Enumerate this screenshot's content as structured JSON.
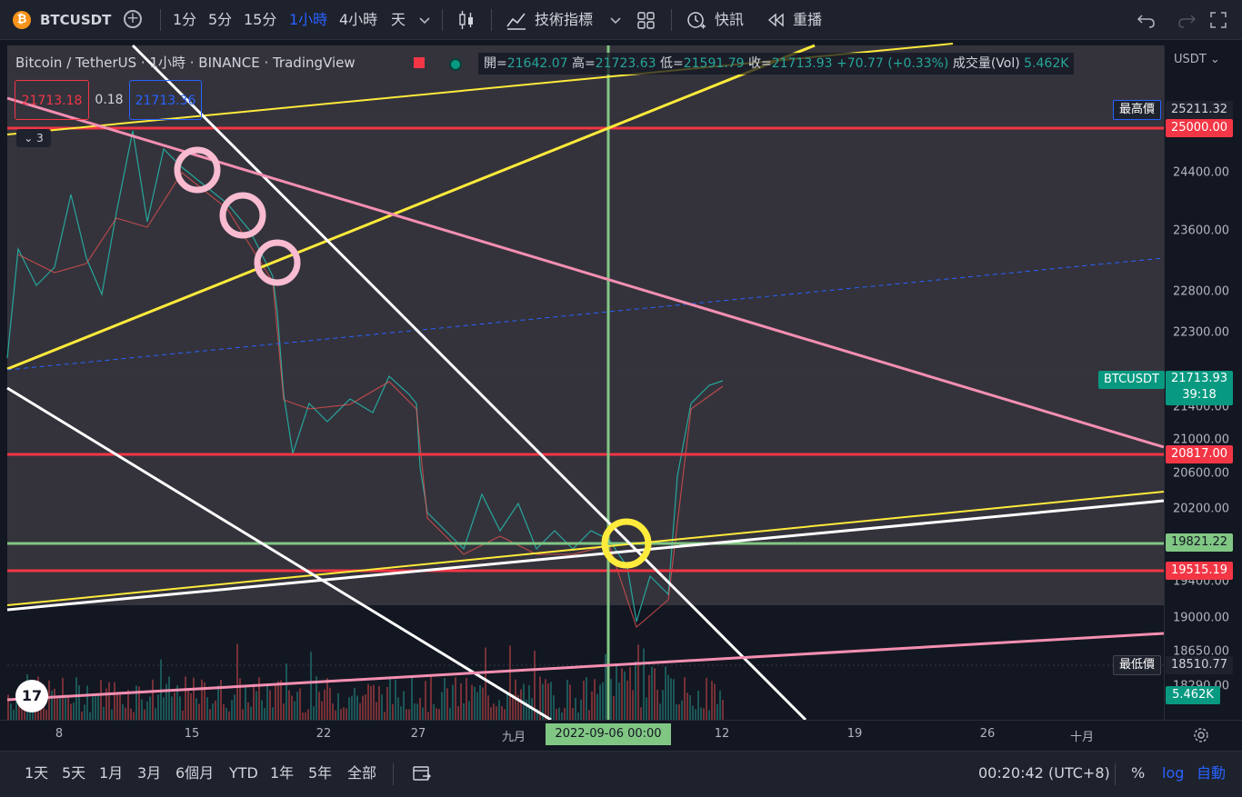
{
  "toolbar": {
    "symbol": "BTCUSDT",
    "btc_glyph": "₿",
    "add_glyph": "+",
    "intervals": [
      "1分",
      "5分",
      "15分",
      "1小時",
      "4小時",
      "天"
    ],
    "active_interval": "1小時",
    "indicators_label": "技術指標",
    "alert_label": "快訊",
    "replay_label": "重播",
    "icons": [
      "bitcoin-icon",
      "add-compare-icon",
      "chevron-down-icon",
      "candles-icon",
      "indicators-icon",
      "layout-grid-icon",
      "alert-clock-icon",
      "replay-icon",
      "undo-icon",
      "redo-icon",
      "fullscreen-icon"
    ]
  },
  "legend": {
    "title": "Bitcoin / TetherUS · 1小時 · BINANCE · TradingView",
    "open_label": "開",
    "open": "21642.07",
    "high_label": "高",
    "high": "21723.63",
    "low_label": "低",
    "low": "21591.79",
    "close_label": "收",
    "close": "21713.93",
    "change": "+70.77 (+0.33%)",
    "volume_label": "成交量(Vol)",
    "volume": "5.462K",
    "bid": "21713.18",
    "spread": "0.18",
    "ask": "21713.36",
    "collapsed_count": "3"
  },
  "price_axis": {
    "currency": "USDT",
    "labels": [
      "24400.00",
      "23600.00",
      "22800.00",
      "22300.00",
      "21400.00",
      "21000.00",
      "20600.00",
      "20200.00",
      "19400.00",
      "19000.00",
      "18650.00",
      "18290.00"
    ],
    "tags": {
      "high_label": "最高價",
      "high": "25211.32",
      "r1": "25000.00",
      "symbol": "BTCUSDT",
      "last": "21713.93",
      "countdown": "39:18",
      "r2": "20817.00",
      "g1": "19821.22",
      "r3": "19515.19",
      "low_label": "最低價",
      "low": "18510.77",
      "vol": "5.462K"
    }
  },
  "time_axis": {
    "labels": [
      "8",
      "15",
      "22",
      "27",
      "九月",
      "12",
      "19",
      "26",
      "十月"
    ],
    "crosshair_date": "2022-09-06   00:00"
  },
  "bottom": {
    "ranges": [
      "1天",
      "5天",
      "1月",
      "3月",
      "6個月",
      "YTD",
      "1年",
      "5年",
      "全部"
    ],
    "clock": "00:20:42 (UTC+8)",
    "percent": "%",
    "log": "log",
    "auto": "自動"
  },
  "colors": {
    "red_line": "#f23645",
    "green_line": "#81c784",
    "yellow_line": "#ffeb3b",
    "pink_line": "#f48fb1",
    "white_line": "#ffffff",
    "teal": "#089981",
    "blue": "#2962ff"
  }
}
